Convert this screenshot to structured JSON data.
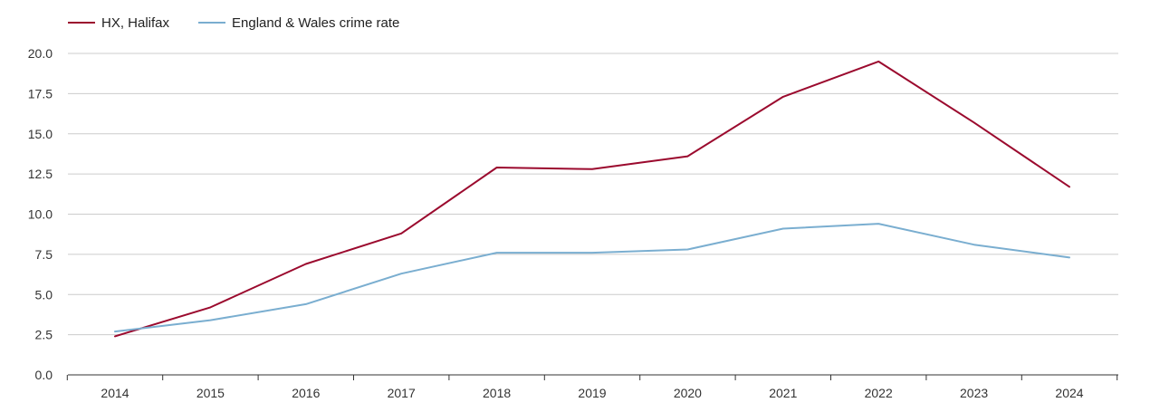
{
  "chart_data": {
    "type": "line",
    "title": "",
    "xlabel": "",
    "ylabel": "",
    "categories": [
      "2014",
      "2015",
      "2016",
      "2017",
      "2018",
      "2019",
      "2020",
      "2021",
      "2022",
      "2023",
      "2024"
    ],
    "yticks": [
      "0.0",
      "2.5",
      "5.0",
      "7.5",
      "10.0",
      "12.5",
      "15.0",
      "17.5",
      "20.0"
    ],
    "ylim": [
      0,
      20
    ],
    "grid": true,
    "legend_position": "top-left",
    "series": [
      {
        "name": "HX, Halifax",
        "color": "#9b0a2e",
        "values": [
          2.4,
          4.2,
          6.9,
          8.8,
          12.9,
          12.8,
          13.6,
          17.3,
          19.5,
          15.7,
          11.7
        ]
      },
      {
        "name": "England & Wales crime rate",
        "color": "#7aaed0",
        "values": [
          2.7,
          3.4,
          4.4,
          6.3,
          7.6,
          7.6,
          7.8,
          9.1,
          9.4,
          8.1,
          7.3
        ]
      }
    ]
  }
}
